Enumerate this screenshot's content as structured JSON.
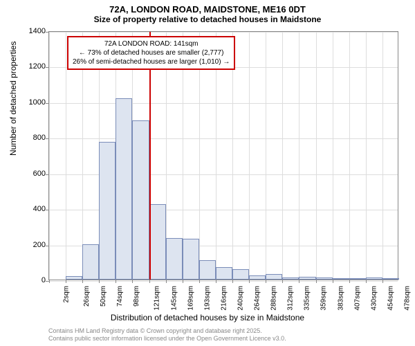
{
  "chart": {
    "type": "histogram",
    "title": "72A, LONDON ROAD, MAIDSTONE, ME16 0DT",
    "subtitle": "Size of property relative to detached houses in Maidstone",
    "ylabel": "Number of detached properties",
    "xlabel": "Distribution of detached houses by size in Maidstone",
    "ylim": [
      0,
      1400
    ],
    "ytick_step": 200,
    "yticks": [
      0,
      200,
      400,
      600,
      800,
      1000,
      1200,
      1400
    ],
    "xticks": [
      "2sqm",
      "26sqm",
      "50sqm",
      "74sqm",
      "98sqm",
      "121sqm",
      "145sqm",
      "169sqm",
      "193sqm",
      "216sqm",
      "240sqm",
      "264sqm",
      "288sqm",
      "312sqm",
      "335sqm",
      "359sqm",
      "383sqm",
      "407sqm",
      "430sqm",
      "454sqm",
      "478sqm"
    ],
    "values": [
      0,
      20,
      200,
      775,
      1020,
      895,
      425,
      235,
      230,
      110,
      70,
      60,
      25,
      30,
      10,
      15,
      10,
      5,
      5,
      10,
      5
    ],
    "bar_color": "#dde4f0",
    "bar_border_color": "#7a8cb8",
    "grid_color": "#dddddd",
    "background_color": "#ffffff",
    "reference_line_color": "#cc0000",
    "reference_x_index": 6,
    "annotation": {
      "line1": "72A LONDON ROAD: 141sqm",
      "line2": "← 73% of detached houses are smaller (2,777)",
      "line3": "26% of semi-detached houses are larger (1,010) →"
    },
    "footer_line1": "Contains HM Land Registry data © Crown copyright and database right 2025.",
    "footer_line2": "Contains public sector information licensed under the Open Government Licence v3.0."
  }
}
